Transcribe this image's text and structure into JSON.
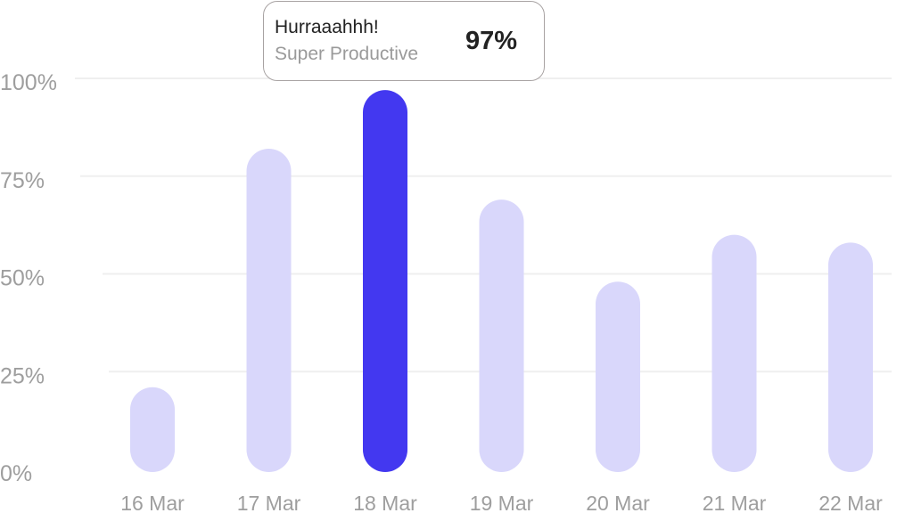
{
  "chart_data": {
    "type": "bar",
    "categories": [
      "16 Mar",
      "17 Mar",
      "18 Mar",
      "19 Mar",
      "20 Mar",
      "21 Mar",
      "22 Mar"
    ],
    "values": [
      21,
      82,
      97,
      69,
      48,
      60,
      58
    ],
    "highlighted": "18 Mar",
    "ylim": [
      0,
      100
    ],
    "yticks": [
      "0%",
      "25%",
      "50%",
      "75%",
      "100%"
    ],
    "grid": true,
    "colors": {
      "bar": "#d9d7fb",
      "highlight": "#4338f0",
      "grid": "#efefef",
      "ticks": "#9e9e9e"
    },
    "tooltip": {
      "title": "Hurraaahhh!",
      "subtitle": "Super Productive",
      "value": "97%"
    }
  }
}
